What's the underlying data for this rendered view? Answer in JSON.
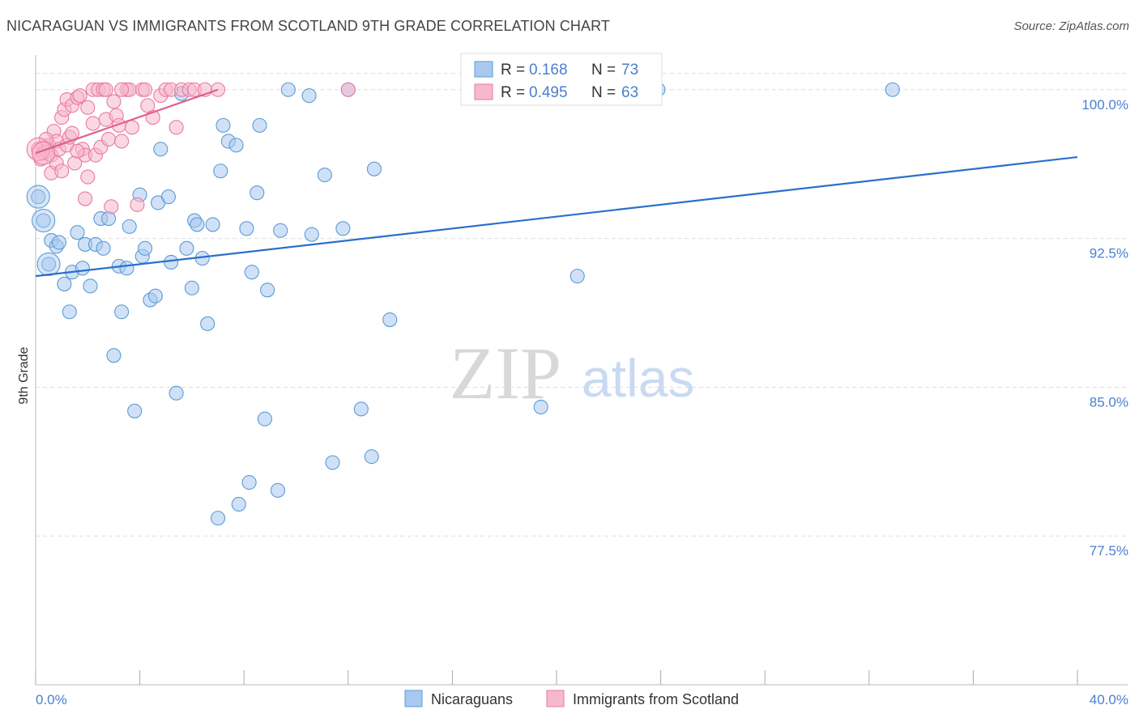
{
  "header": {
    "title": "NICARAGUAN VS IMMIGRANTS FROM SCOTLAND 9TH GRADE CORRELATION CHART",
    "source": "Source: ZipAtlas.com"
  },
  "watermark": {
    "zip": "ZIP",
    "atlas": "atlas"
  },
  "colors": {
    "blue": "#5b9bd5",
    "blue_fill": "#a9c8f0",
    "blue_line": "#2a6fcc",
    "pink": "#e87aa0",
    "pink_fill": "#f6b8cc",
    "pink_line": "#e0608a",
    "axis_text": "#4a7fd0",
    "grid": "#dddddd"
  },
  "chart_data": {
    "type": "scatter",
    "xlabel": "",
    "ylabel": "9th Grade",
    "xlim": [
      0,
      40
    ],
    "ylim": [
      70.0,
      101.5
    ],
    "x_tick_labels": [
      "0.0%",
      "40.0%"
    ],
    "y_ticks": [
      77.5,
      85.0,
      92.5,
      100.0
    ],
    "y_tick_labels": [
      "77.5%",
      "85.0%",
      "92.5%",
      "100.0%"
    ],
    "grid": true,
    "legend": {
      "stats": [
        {
          "r_label": "R =",
          "r": "0.168",
          "n_label": "N =",
          "n": "73"
        },
        {
          "r_label": "R =",
          "r": "0.495",
          "n_label": "N =",
          "n": "63"
        }
      ],
      "bottom": [
        "Nicaraguans",
        "Immigrants from Scotland"
      ]
    },
    "series": [
      {
        "name": "Nicaraguans",
        "color": "#5b9bd5",
        "trend": {
          "x": [
            0,
            40
          ],
          "y": [
            90.6,
            96.6
          ]
        },
        "points": [
          [
            0.1,
            94.6
          ],
          [
            0.3,
            93.4
          ],
          [
            0.5,
            91.2
          ],
          [
            0.6,
            92.4
          ],
          [
            0.8,
            92.1
          ],
          [
            0.9,
            92.3
          ],
          [
            1.1,
            90.2
          ],
          [
            1.3,
            88.8
          ],
          [
            1.4,
            90.8
          ],
          [
            1.6,
            92.8
          ],
          [
            1.8,
            91.0
          ],
          [
            1.9,
            92.2
          ],
          [
            2.1,
            90.1
          ],
          [
            2.3,
            92.2
          ],
          [
            2.5,
            93.5
          ],
          [
            2.6,
            92.0
          ],
          [
            2.8,
            93.5
          ],
          [
            3.0,
            86.6
          ],
          [
            3.2,
            91.1
          ],
          [
            3.3,
            88.8
          ],
          [
            3.5,
            91.0
          ],
          [
            3.6,
            93.1
          ],
          [
            3.8,
            83.8
          ],
          [
            4.0,
            94.7
          ],
          [
            4.1,
            91.6
          ],
          [
            4.2,
            92.0
          ],
          [
            4.4,
            89.4
          ],
          [
            4.6,
            89.6
          ],
          [
            4.7,
            94.3
          ],
          [
            4.8,
            97.0
          ],
          [
            5.1,
            94.6
          ],
          [
            5.2,
            91.3
          ],
          [
            5.4,
            84.7
          ],
          [
            5.6,
            99.8
          ],
          [
            5.8,
            92.0
          ],
          [
            6.0,
            90.0
          ],
          [
            6.1,
            93.4
          ],
          [
            6.2,
            93.2
          ],
          [
            6.4,
            91.5
          ],
          [
            6.6,
            88.2
          ],
          [
            6.8,
            93.2
          ],
          [
            7.0,
            78.4
          ],
          [
            7.1,
            95.9
          ],
          [
            7.2,
            98.2
          ],
          [
            7.4,
            97.4
          ],
          [
            7.7,
            97.2
          ],
          [
            7.8,
            79.1
          ],
          [
            8.1,
            93.0
          ],
          [
            8.2,
            80.2
          ],
          [
            8.3,
            90.8
          ],
          [
            8.5,
            94.8
          ],
          [
            8.6,
            98.2
          ],
          [
            8.8,
            83.4
          ],
          [
            8.9,
            89.9
          ],
          [
            9.3,
            79.8
          ],
          [
            9.4,
            92.9
          ],
          [
            9.7,
            100.0
          ],
          [
            10.5,
            99.7
          ],
          [
            10.6,
            92.7
          ],
          [
            11.1,
            95.7
          ],
          [
            11.4,
            81.2
          ],
          [
            11.8,
            93.0
          ],
          [
            12.0,
            100.0
          ],
          [
            12.5,
            83.9
          ],
          [
            12.9,
            81.5
          ],
          [
            13.0,
            96.0
          ],
          [
            13.6,
            88.4
          ],
          [
            16.9,
            100.0
          ],
          [
            19.4,
            84.0
          ],
          [
            20.8,
            90.6
          ],
          [
            22.5,
            100.0
          ],
          [
            23.9,
            100.0
          ],
          [
            32.9,
            100.0
          ]
        ],
        "big_points": [
          [
            0.1,
            94.6
          ],
          [
            0.3,
            93.4
          ],
          [
            0.5,
            91.2
          ]
        ]
      },
      {
        "name": "Immigrants from Scotland",
        "color": "#e87aa0",
        "trend": {
          "x": [
            0.0,
            7.0
          ],
          "y": [
            96.8,
            100.0
          ]
        },
        "points": [
          [
            0.1,
            97.0
          ],
          [
            0.2,
            96.5
          ],
          [
            0.3,
            97.1
          ],
          [
            0.3,
            96.8
          ],
          [
            0.4,
            96.9
          ],
          [
            0.5,
            97.2
          ],
          [
            0.6,
            96.7
          ],
          [
            0.6,
            95.8
          ],
          [
            0.7,
            97.9
          ],
          [
            0.8,
            97.4
          ],
          [
            0.8,
            96.3
          ],
          [
            0.9,
            97.0
          ],
          [
            1.0,
            95.9
          ],
          [
            1.0,
            98.6
          ],
          [
            1.1,
            99.0
          ],
          [
            1.2,
            97.2
          ],
          [
            1.2,
            99.5
          ],
          [
            1.3,
            97.6
          ],
          [
            1.4,
            97.8
          ],
          [
            1.4,
            99.2
          ],
          [
            1.5,
            96.3
          ],
          [
            1.6,
            99.6
          ],
          [
            1.7,
            99.7
          ],
          [
            1.8,
            97.0
          ],
          [
            1.9,
            94.5
          ],
          [
            1.9,
            96.7
          ],
          [
            2.0,
            95.6
          ],
          [
            2.0,
            99.1
          ],
          [
            2.2,
            100.0
          ],
          [
            2.2,
            98.3
          ],
          [
            2.3,
            96.7
          ],
          [
            2.4,
            100.0
          ],
          [
            2.5,
            97.1
          ],
          [
            2.6,
            100.0
          ],
          [
            2.7,
            98.5
          ],
          [
            2.7,
            100.0
          ],
          [
            2.8,
            97.5
          ],
          [
            2.9,
            94.1
          ],
          [
            3.0,
            99.4
          ],
          [
            3.1,
            98.7
          ],
          [
            3.2,
            98.2
          ],
          [
            3.3,
            97.4
          ],
          [
            3.5,
            100.0
          ],
          [
            3.6,
            100.0
          ],
          [
            3.7,
            98.1
          ],
          [
            3.9,
            94.2
          ],
          [
            4.1,
            100.0
          ],
          [
            4.2,
            100.0
          ],
          [
            4.3,
            99.2
          ],
          [
            4.5,
            98.6
          ],
          [
            4.8,
            99.7
          ],
          [
            5.0,
            100.0
          ],
          [
            5.2,
            100.0
          ],
          [
            5.4,
            98.1
          ],
          [
            5.6,
            100.0
          ],
          [
            5.9,
            100.0
          ],
          [
            6.1,
            100.0
          ],
          [
            6.5,
            100.0
          ],
          [
            7.0,
            100.0
          ],
          [
            12.0,
            100.0
          ],
          [
            0.4,
            97.5
          ],
          [
            1.6,
            96.9
          ],
          [
            3.3,
            100.0
          ]
        ],
        "big_points": [
          [
            0.1,
            97.0
          ],
          [
            0.3,
            96.8
          ]
        ]
      }
    ]
  }
}
